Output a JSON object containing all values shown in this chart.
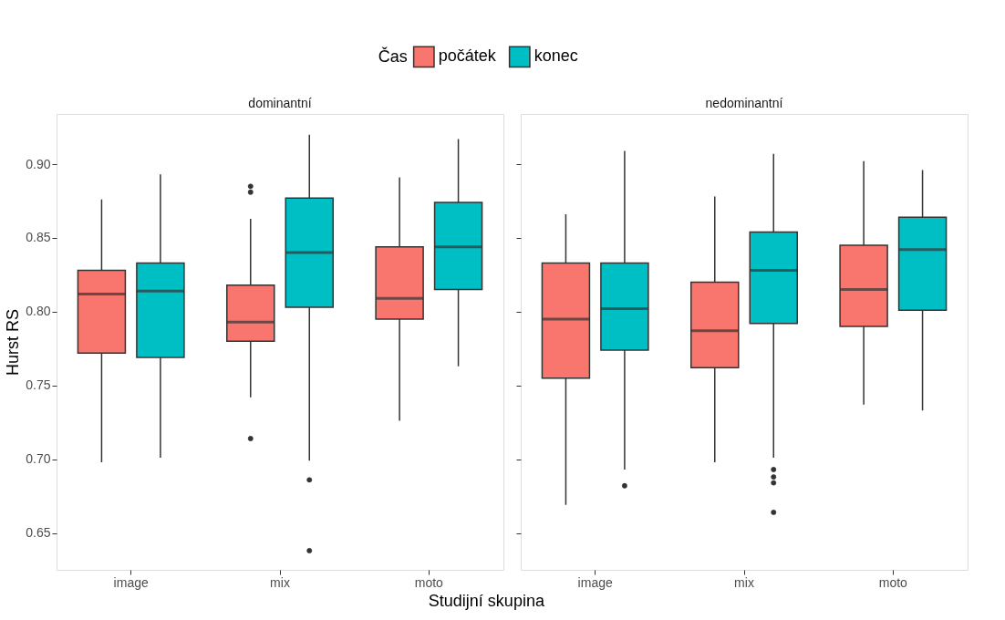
{
  "chart_data": [
    {
      "type": "box",
      "title": "dominantní",
      "xlabel": "Studijní skupina",
      "ylabel": "Hurst RS",
      "legend_title": "Čas",
      "legend": "top",
      "grid": false,
      "categories": [
        "image",
        "mix",
        "moto"
      ],
      "ylim": [
        0.625,
        0.934
      ],
      "yticks": [
        0.65,
        {
          "value": 0.7,
          "label": "0.70"
        },
        0.75,
        {
          "value": 0.8,
          "label": "0.80"
        },
        0.85,
        {
          "value": 0.9,
          "label": "0.90"
        }
      ],
      "series": [
        {
          "name": "počátek",
          "color": "#f8766d",
          "boxes": [
            {
              "low": 0.698,
              "q1": 0.772,
              "median": 0.812,
              "q3": 0.828,
              "high": 0.876
            },
            {
              "low": 0.742,
              "q1": 0.78,
              "median": 0.793,
              "q3": 0.818,
              "high": 0.863,
              "outliers": [
                0.885,
                0.881,
                0.714
              ]
            },
            {
              "low": 0.726,
              "q1": 0.795,
              "median": 0.809,
              "q3": 0.844,
              "high": 0.891
            }
          ]
        },
        {
          "name": "konec",
          "color": "#00bfc4",
          "boxes": [
            {
              "low": 0.701,
              "q1": 0.769,
              "median": 0.814,
              "q3": 0.833,
              "high": 0.893
            },
            {
              "low": 0.699,
              "q1": 0.803,
              "median": 0.84,
              "q3": 0.877,
              "high": 0.92,
              "outliers": [
                0.686,
                0.638
              ]
            },
            {
              "low": 0.763,
              "q1": 0.815,
              "median": 0.844,
              "q3": 0.874,
              "high": 0.917
            }
          ]
        }
      ]
    },
    {
      "type": "box",
      "title": "nedominantní",
      "grid": false,
      "tick_labels": "x",
      "categories": [
        "image",
        "mix",
        "moto"
      ],
      "ylim": [
        0.625,
        0.934
      ],
      "yticks": [
        0.65,
        0.7,
        0.75,
        0.8,
        0.85,
        0.9
      ],
      "series": [
        {
          "name": "počátek",
          "color": "#f8766d",
          "boxes": [
            {
              "low": 0.669,
              "q1": 0.755,
              "median": 0.795,
              "q3": 0.833,
              "high": 0.866
            },
            {
              "low": 0.698,
              "q1": 0.762,
              "median": 0.787,
              "q3": 0.82,
              "high": 0.878
            },
            {
              "low": 0.737,
              "q1": 0.79,
              "median": 0.815,
              "q3": 0.845,
              "high": 0.902
            }
          ]
        },
        {
          "name": "konec",
          "color": "#00bfc4",
          "boxes": [
            {
              "low": 0.693,
              "q1": 0.774,
              "median": 0.802,
              "q3": 0.833,
              "high": 0.909,
              "outliers": [
                0.682
              ]
            },
            {
              "low": 0.701,
              "q1": 0.792,
              "median": 0.828,
              "q3": 0.854,
              "high": 0.907,
              "outliers": [
                0.693,
                0.688,
                0.684,
                0.664
              ]
            },
            {
              "low": 0.733,
              "q1": 0.801,
              "median": 0.842,
              "q3": 0.864,
              "high": 0.896
            }
          ]
        }
      ]
    }
  ]
}
